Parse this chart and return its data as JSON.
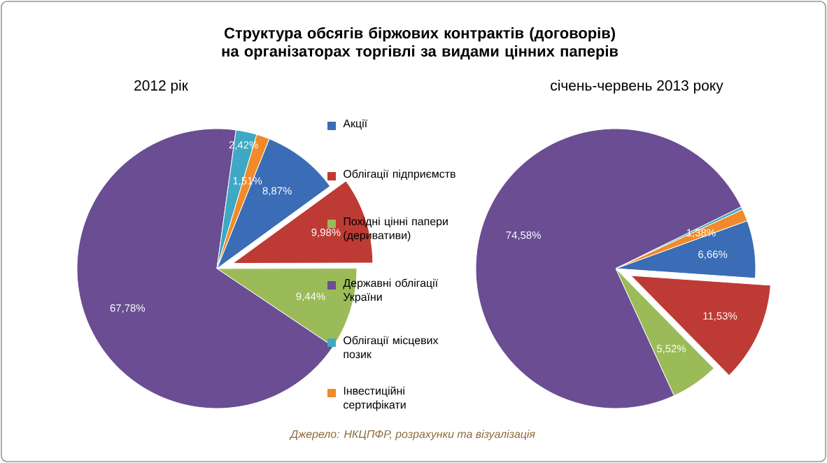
{
  "chart_data": {
    "type": "pie",
    "title": "Структура обсягів біржових контрактів (договорів) на організаторах торгівлі за видами цінних паперів",
    "categories": [
      "Акції",
      "Облігації підприємств",
      "Похідні цінні папери (деривативи)",
      "Державні облігації України",
      "Облігації місцевих позик",
      "Інвестиційні сертифікати"
    ],
    "colors": [
      "#3a6db5",
      "#be3a34",
      "#9bbb59",
      "#6a4d93",
      "#3fa8c4",
      "#f08a2a"
    ],
    "series": [
      {
        "name": "2012 рік",
        "values": [
          8.87,
          9.98,
          9.44,
          67.78,
          2.42,
          1.51
        ],
        "value_labels": [
          "8,87%",
          "9,98%",
          "9,44%",
          "67,78%",
          "2,42%",
          "1,51%"
        ]
      },
      {
        "name": "січень-червень 2013 року",
        "values": [
          6.66,
          11.53,
          5.52,
          74.58,
          0.33,
          1.38
        ],
        "value_labels": [
          "6,66%",
          "11,53%",
          "5,52%",
          "74,58%",
          null,
          "1,38%"
        ]
      }
    ],
    "legend": "right",
    "annotations": [
      "Джерело: НКЦПФР, розрахунки та візуалізація"
    ]
  }
}
